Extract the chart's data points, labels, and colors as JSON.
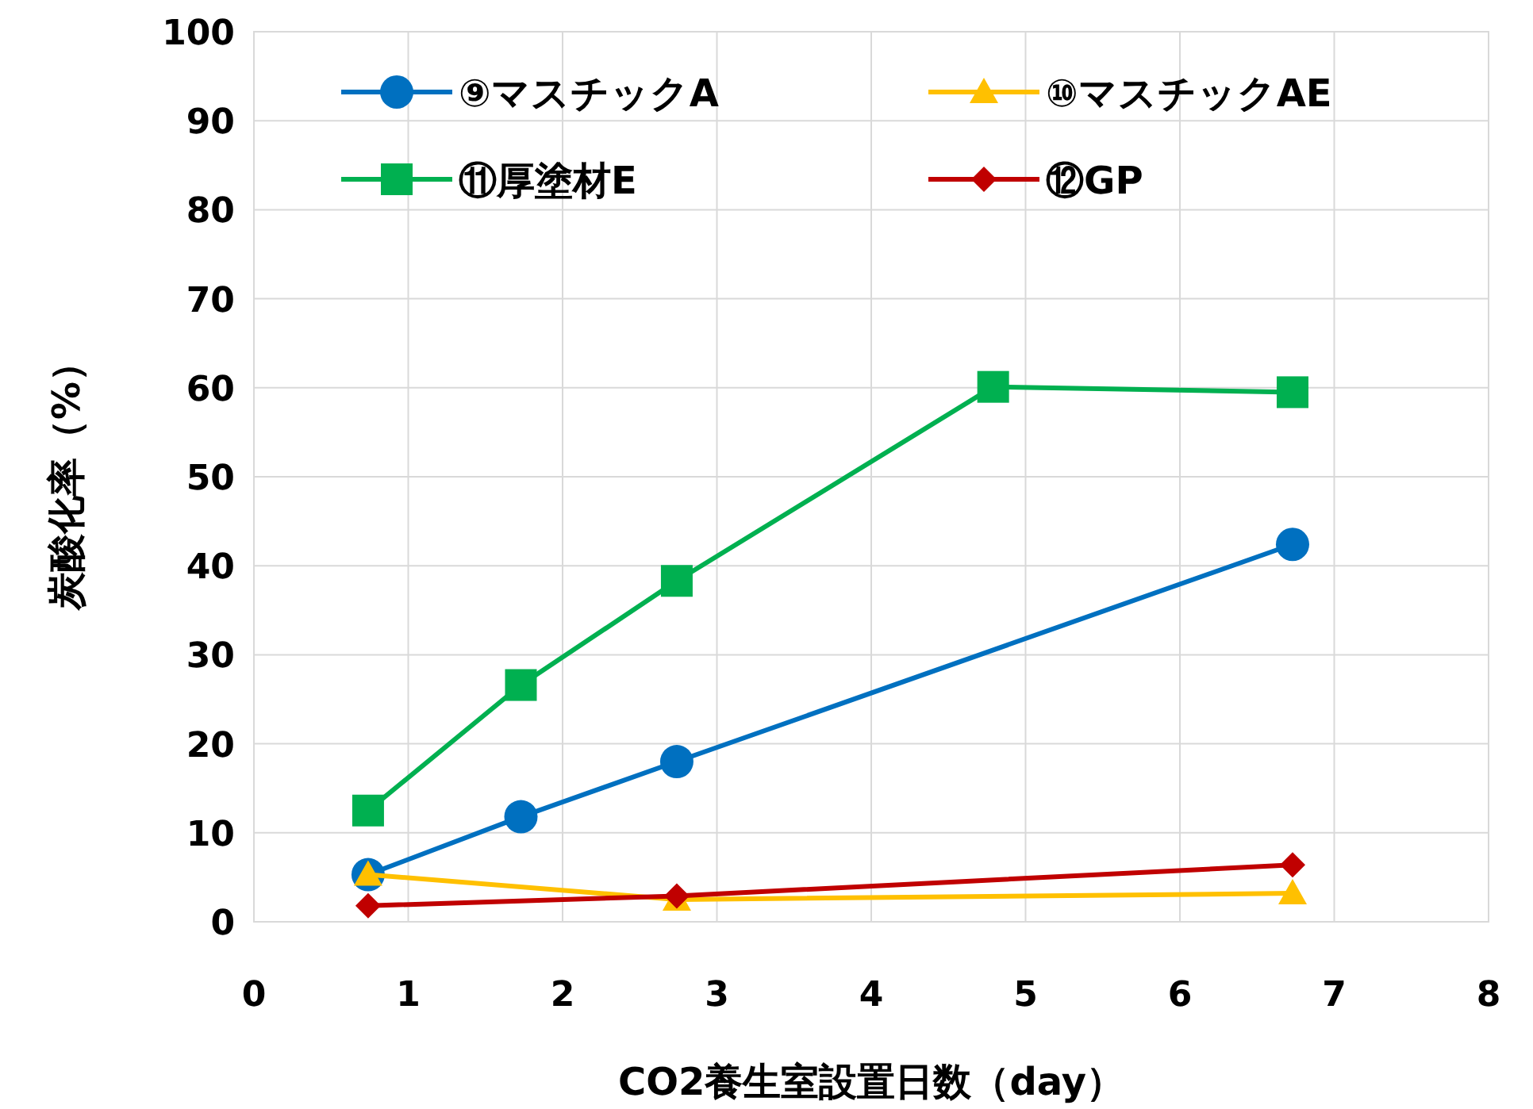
{
  "chart_data": {
    "type": "line",
    "xlabel": "CO2養生室設置日数（day）",
    "ylabel": "炭酸化率（%）",
    "xlim": [
      0,
      8
    ],
    "xticks": [
      0,
      1,
      2,
      3,
      4,
      5,
      6,
      7,
      8
    ],
    "ylim": [
      0,
      100
    ],
    "yticks": [
      0,
      10,
      20,
      30,
      40,
      50,
      60,
      70,
      80,
      90,
      100
    ],
    "grid": true,
    "legend": "top",
    "line_style": "solid",
    "series": [
      {
        "name": "⑨マスチックA",
        "color": "#0070c0",
        "marker": "circle",
        "x": [
          0.74,
          1.73,
          2.74,
          6.73
        ],
        "values": [
          5.3,
          11.8,
          18.0,
          42.4
        ]
      },
      {
        "name": "⑩マスチックAE",
        "color": "#ffc000",
        "marker": "triangle",
        "x": [
          0.74,
          2.74,
          6.73
        ],
        "values": [
          5.3,
          2.5,
          3.2
        ]
      },
      {
        "name": "⑪厚塗材E",
        "color": "#00b050",
        "marker": "square",
        "x": [
          0.74,
          1.73,
          2.74,
          4.79,
          6.73
        ],
        "values": [
          12.5,
          26.6,
          38.3,
          60.1,
          59.5
        ]
      },
      {
        "name": "⑫GP",
        "color": "#c00000",
        "marker": "diamond",
        "x": [
          0.74,
          2.74,
          6.73
        ],
        "values": [
          1.8,
          2.9,
          6.4
        ]
      }
    ]
  }
}
